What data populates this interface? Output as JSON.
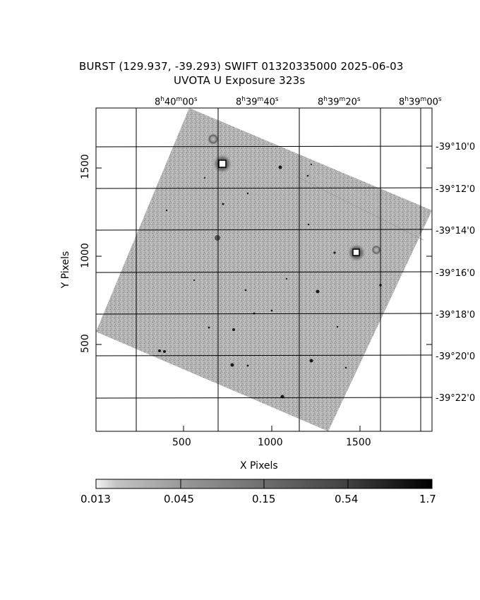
{
  "header": {
    "title_line1": "BURST (129.937, -39.293) SWIFT 01320335000 2025-06-03",
    "title_line2": "UVOTA U Exposure        323s"
  },
  "axes": {
    "x_label": "X Pixels",
    "y_label": "Y Pixels",
    "x_ticks": [
      "500",
      "1000",
      "1500"
    ],
    "y_ticks": [
      "500",
      "1000",
      "1500"
    ],
    "ra_ticks": [
      "8h40m00s",
      "8h39m40s",
      "8h39m20s",
      "8h39m00s"
    ],
    "dec_ticks": [
      "-39°10'0",
      "-39°12'0",
      "-39°14'0",
      "-39°16'0",
      "-39°18'0",
      "-39°20'0",
      "-39°22'0"
    ]
  },
  "colorbar": {
    "labels": [
      "0.013",
      "0.045",
      "0.15",
      "0.54",
      "1.7"
    ]
  },
  "image": {
    "description_colors": {
      "field": "#a8a8a8",
      "background": "#ffffff",
      "star": "#1a1a1a"
    }
  }
}
